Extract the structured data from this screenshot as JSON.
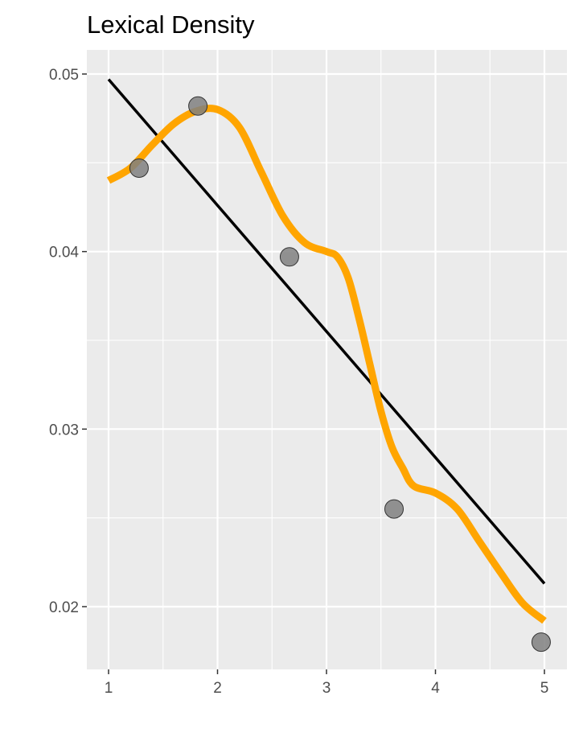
{
  "chart_data": {
    "type": "scatter",
    "title": "Lexical Density",
    "xlabel": "",
    "ylabel": "",
    "xlim": [
      0.8,
      5.2
    ],
    "ylim": [
      0.0167,
      0.0514
    ],
    "x_ticks": [
      1,
      2,
      3,
      4,
      5
    ],
    "x_tick_labels": [
      "1",
      "2",
      "3",
      "4",
      "5"
    ],
    "y_ticks": [
      0.02,
      0.03,
      0.04,
      0.05
    ],
    "y_tick_labels": [
      "0.02",
      "0.03",
      "0.04",
      "0.05"
    ],
    "grid": true,
    "background": "#EBEBEB",
    "points": {
      "x": [
        1.28,
        1.82,
        2.66,
        3.62,
        4.97
      ],
      "y": [
        0.0447,
        0.0482,
        0.0397,
        0.0255,
        0.018
      ],
      "color": "#808080"
    },
    "linear_fit": {
      "x": [
        1,
        5
      ],
      "y": [
        0.0497,
        0.0213
      ],
      "color": "#000000"
    },
    "smooth_fit": {
      "color": "#FFA500",
      "x": [
        1.0,
        1.2,
        1.4,
        1.6,
        1.8,
        2.0,
        2.2,
        2.4,
        2.6,
        2.8,
        3.0,
        3.1,
        3.2,
        3.3,
        3.4,
        3.5,
        3.6,
        3.7,
        3.8,
        4.0,
        4.2,
        4.4,
        4.6,
        4.8,
        5.0
      ],
      "y": [
        0.044,
        0.0447,
        0.046,
        0.0472,
        0.0479,
        0.048,
        0.047,
        0.0445,
        0.042,
        0.0405,
        0.04,
        0.0397,
        0.0385,
        0.0362,
        0.0336,
        0.031,
        0.029,
        0.0278,
        0.0268,
        0.0264,
        0.0255,
        0.0237,
        0.0219,
        0.0202,
        0.0192
      ]
    }
  }
}
